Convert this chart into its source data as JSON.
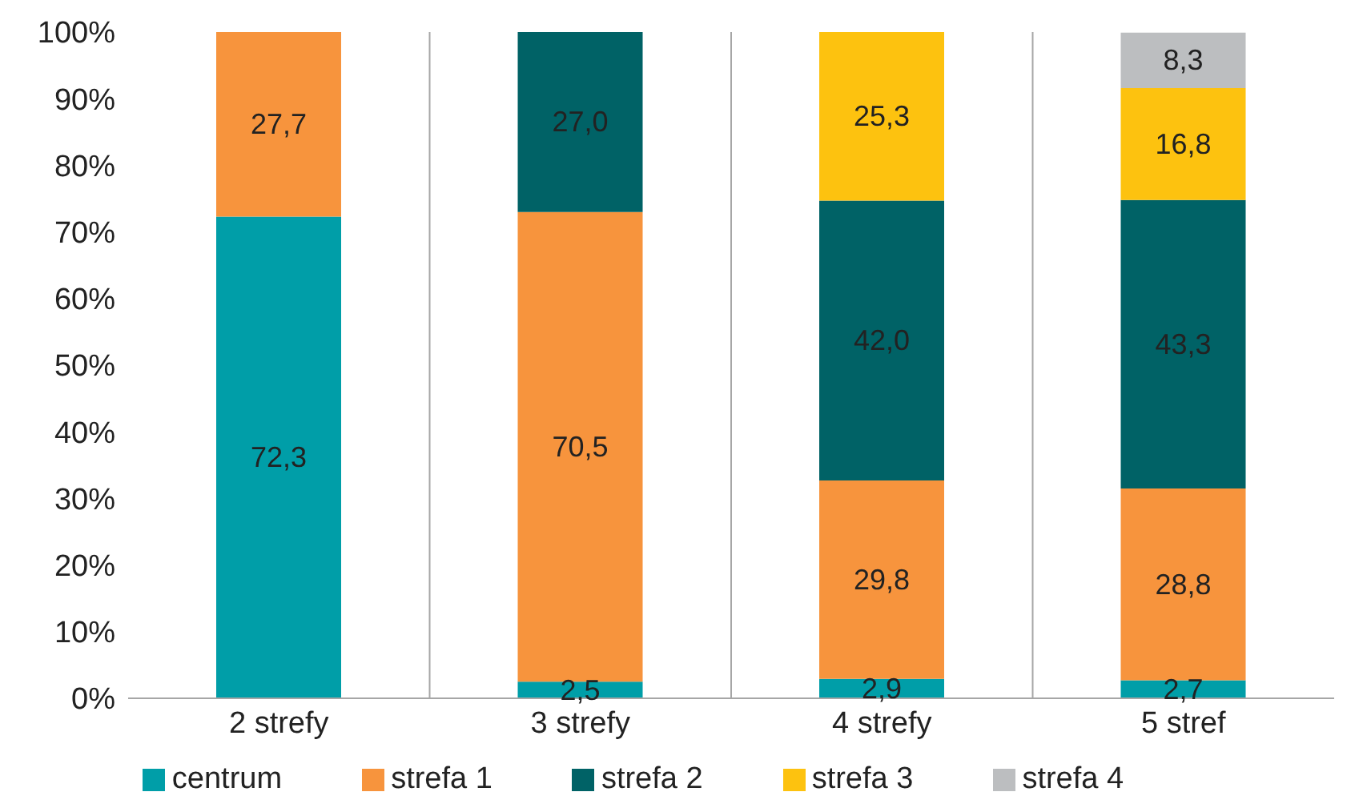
{
  "chart_data": {
    "type": "bar",
    "stacked": true,
    "categories": [
      "2 strefy",
      "3 strefy",
      "4 strefy",
      "5 stref"
    ],
    "series": [
      {
        "name": "centrum",
        "color": "#009ea8",
        "values": [
          72.3,
          2.5,
          2.9,
          2.7
        ],
        "value_labels": [
          "72,3",
          "2,5",
          "2,9",
          "2,7"
        ]
      },
      {
        "name": "strefa 1",
        "color": "#f7943d",
        "values": [
          27.7,
          70.5,
          29.8,
          28.8
        ],
        "value_labels": [
          "27,7",
          "70,5",
          "29,8",
          "28,8"
        ]
      },
      {
        "name": "strefa 2",
        "color": "#006266",
        "values": [
          null,
          27.0,
          42.0,
          43.3
        ],
        "value_labels": [
          null,
          "27,0",
          "42,0",
          "43,3"
        ]
      },
      {
        "name": "strefa 3",
        "color": "#fdc20f",
        "values": [
          null,
          null,
          25.3,
          16.8
        ],
        "value_labels": [
          null,
          null,
          "25,3",
          "16,8"
        ]
      },
      {
        "name": "strefa 4",
        "color": "#bcbec0",
        "values": [
          null,
          null,
          null,
          8.3
        ],
        "value_labels": [
          null,
          null,
          null,
          "8,3"
        ]
      }
    ],
    "ylim": [
      0,
      100
    ],
    "yticks": [
      {
        "value": 0,
        "label": "0%"
      },
      {
        "value": 10,
        "label": "10%"
      },
      {
        "value": 20,
        "label": "20%"
      },
      {
        "value": 30,
        "label": "30%"
      },
      {
        "value": 40,
        "label": "40%"
      },
      {
        "value": 50,
        "label": "50%"
      },
      {
        "value": 60,
        "label": "60%"
      },
      {
        "value": 70,
        "label": "70%"
      },
      {
        "value": 80,
        "label": "80%"
      },
      {
        "value": 90,
        "label": "90%"
      },
      {
        "value": 100,
        "label": "100%"
      }
    ],
    "grid": "x",
    "legend": "bottom"
  }
}
